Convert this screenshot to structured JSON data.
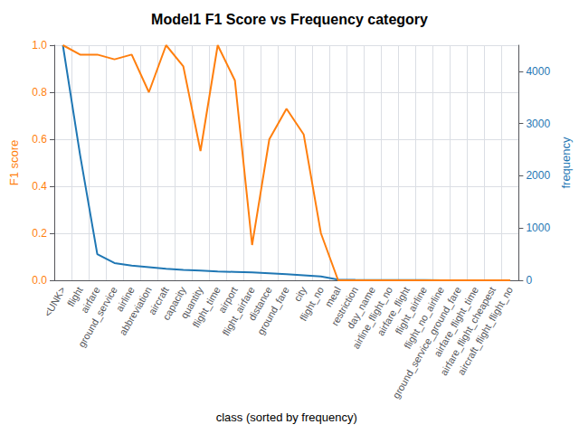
{
  "chart_data": {
    "type": "line",
    "title": "Model1 F1 Score vs Frequency category",
    "xlabel": "class (sorted by frequency)",
    "ylabel": "F1 score",
    "y2label": "frequency",
    "categories": [
      "<UNK>",
      "flight",
      "airfare",
      "ground_service",
      "airline",
      "abbreviation",
      "aircraft",
      "capacity",
      "quantity",
      "flight_time",
      "airport",
      "flight_airfare",
      "distance",
      "ground_fare",
      "city",
      "flight_no",
      "meal",
      "restriction",
      "day_name",
      "airline_flight_no",
      "airfare_flight",
      "flight_airline",
      "flight_no_airline",
      "ground_service_ground_fare",
      "airfare_flight_time",
      "airfare_flight_cheapest",
      "aircraft_flight_flight_no"
    ],
    "series": [
      {
        "color": "#ff7f0e",
        "values": [
          1.0,
          0.96,
          0.96,
          0.94,
          0.96,
          0.8,
          1.0,
          0.91,
          0.55,
          1.0,
          0.85,
          0.15,
          0.6,
          0.73,
          0.62,
          0.2,
          0.0,
          0.0,
          0.0,
          0.0,
          0.0,
          0.0,
          0.0,
          0.0,
          0.0,
          0.0,
          0.0
        ]
      },
      {
        "color": "#1f77b4",
        "axis": "y2",
        "values": [
          4500,
          2400,
          500,
          330,
          280,
          250,
          220,
          200,
          185,
          170,
          160,
          150,
          135,
          115,
          95,
          75,
          12,
          8,
          6,
          5,
          4,
          3,
          2,
          2,
          1,
          1,
          1
        ]
      }
    ],
    "ylim": [
      0.0,
      1.0
    ],
    "yticks": [
      {
        "value": 0.0,
        "label": "0.0"
      },
      0.2,
      0.4,
      0.6,
      0.8,
      {
        "value": 1.0,
        "label": "1.0"
      }
    ],
    "y2lim": [
      0,
      4500
    ],
    "y2ticks": [
      0,
      1000,
      2000,
      3000,
      4000
    ],
    "grid": true
  }
}
